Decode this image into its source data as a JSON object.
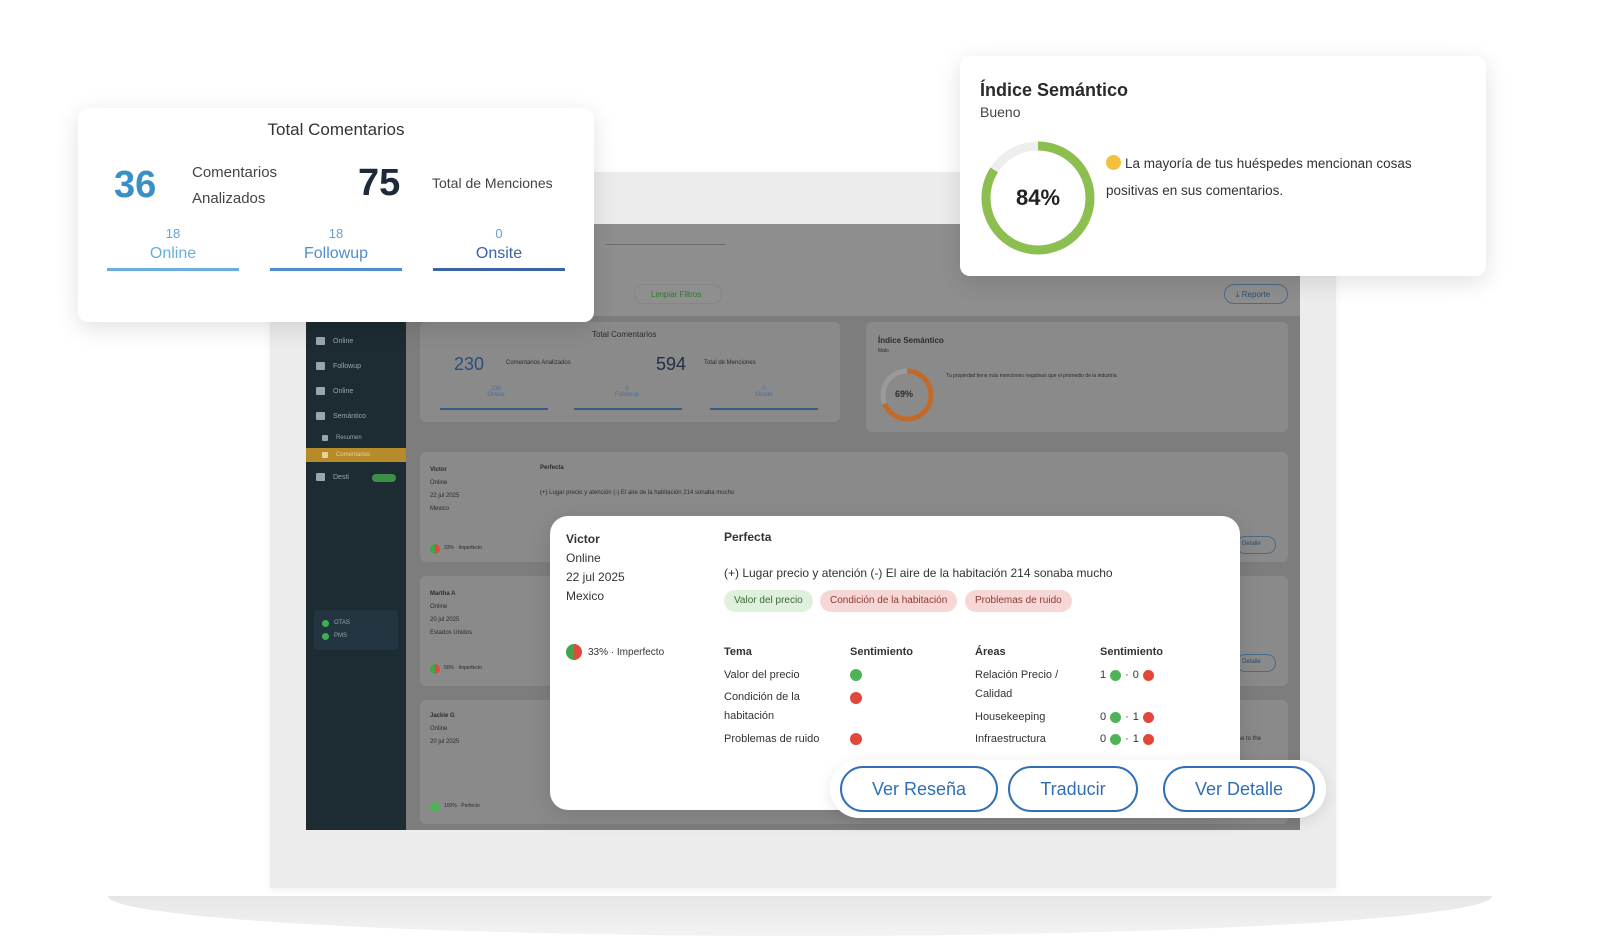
{
  "total_card": {
    "title": "Total Comentarios",
    "analyzed_count": "36",
    "analyzed_label_1": "Comentarios",
    "analyzed_label_2": "Analizados",
    "mentions_count": "75",
    "mentions_label": "Total de Menciones",
    "channels": [
      {
        "count": "18",
        "label": "Online",
        "color": "#6aaee0"
      },
      {
        "count": "18",
        "label": "Followup",
        "color": "#4f8dd0"
      },
      {
        "count": "0",
        "label": "Onsite",
        "color": "#3b63a8"
      }
    ],
    "accent": "#3a8fc4"
  },
  "semantic_card": {
    "title": "Índice Semántico",
    "status": "Bueno",
    "percent_label": "84%",
    "percent": 84,
    "ring_color": "#8cbf4f",
    "message_1": "La mayoría de tus huéspedes mencionan cosas",
    "message_2": "positivas en sus comentarios."
  },
  "background_app": {
    "sidebar": [
      "Online",
      "Followup",
      "Online",
      "Semántico",
      "Resumen",
      "Comentarios",
      "Desti"
    ],
    "sidebar_footer": [
      "OTAS",
      "PMS"
    ],
    "filter_button": "Limpiar Filtros",
    "report_button": "Reporte",
    "total_title": "Total Comentarios",
    "analyzed_count": "230",
    "analyzed_label": "Comentarios Analizados",
    "mentions_count": "594",
    "mentions_label": "Total de Menciones",
    "channels": [
      {
        "count": "230",
        "label": "Online"
      },
      {
        "count": "0",
        "label": "Followup"
      },
      {
        "count": "0",
        "label": "Onsite"
      }
    ],
    "semantic_title": "Índice Semántico",
    "semantic_status": "Malo",
    "semantic_percent": "69%",
    "semantic_msg": "Tu propiedad tiene más menciones negativas que el promedio de la industria.",
    "reviews": [
      {
        "name": "Victor",
        "channel": "Online",
        "date": "22 jul 2025",
        "country": "Mexico",
        "score": "33% · Imperfecto",
        "rating": "Perfecta",
        "text": "(+) Lugar precio y atención (-) El aire de la habitación 214 sonaba mucho"
      },
      {
        "name": "Martha A",
        "channel": "Online",
        "date": "20 jul 2025",
        "country": "Estados Unidos",
        "score": "50% · Imperfecto"
      },
      {
        "name": "Jackie G",
        "channel": "Online",
        "date": "20 jul 2025",
        "score": "100% · Perfecto"
      }
    ],
    "detail_label": "Detalle",
    "overflow_text": "se to the"
  },
  "review_card": {
    "name": "Victor",
    "channel": "Online",
    "date": "22 jul 2025",
    "country": "Mexico",
    "rating": "Perfecta",
    "text": "(+) Lugar precio y atención (-) El aire de la habitación 214 sonaba mucho",
    "chips": [
      {
        "label": "Valor del precio",
        "tone": "positive"
      },
      {
        "label": "Condición de la habitación",
        "tone": "negative"
      },
      {
        "label": "Problemas de ruido",
        "tone": "negative"
      }
    ],
    "score": "33% · Imperfecto",
    "topic_header": "Tema",
    "sentiment_header": "Sentimiento",
    "areas_header": "Áreas",
    "sentiment_header_2": "Sentimiento",
    "topics": [
      {
        "label_1": "Valor del precio",
        "label_2": "",
        "sentiment": "positive"
      },
      {
        "label_1": "Condición de la",
        "label_2": "habitación",
        "sentiment": "negative"
      },
      {
        "label_1": "Problemas de ruido",
        "label_2": "",
        "sentiment": "negative"
      }
    ],
    "areas": [
      {
        "label_1": "Relación Precio /",
        "label_2": "Calidad",
        "pos": "1",
        "neg": "0"
      },
      {
        "label_1": "Housekeeping",
        "label_2": "",
        "pos": "0",
        "neg": "1"
      },
      {
        "label_1": "Infraestructura",
        "label_2": "",
        "pos": "0",
        "neg": "1"
      }
    ],
    "separator": "·"
  },
  "actions": {
    "view_review": "Ver Reseña",
    "translate": "Traducir",
    "view_detail": "Ver Detalle",
    "color": "#2f6fb5"
  }
}
